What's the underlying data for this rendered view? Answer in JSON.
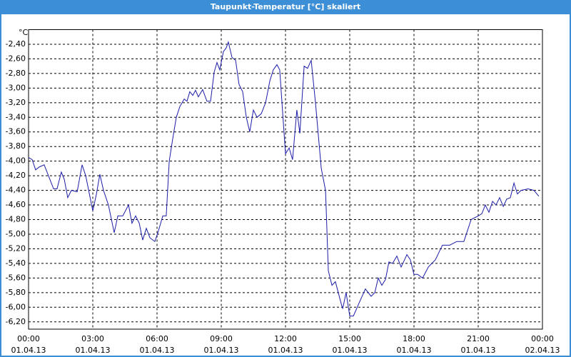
{
  "chart_data": {
    "type": "line",
    "title": "Taupunkt-Temperatur [°C] skaliert",
    "y_unit": "°C",
    "xlim": [
      0,
      24
    ],
    "xticks": [
      {
        "value": 0,
        "label": [
          "00:00",
          "01.04.13"
        ]
      },
      {
        "value": 3,
        "label": [
          "03:00",
          "01.04.13"
        ]
      },
      {
        "value": 6,
        "label": [
          "06:00",
          "01.04.13"
        ]
      },
      {
        "value": 9,
        "label": [
          "09:00",
          "01.04.13"
        ]
      },
      {
        "value": 12,
        "label": [
          "12:00",
          "01.04.13"
        ]
      },
      {
        "value": 15,
        "label": [
          "15:00",
          "01.04.13"
        ]
      },
      {
        "value": 18,
        "label": [
          "18:00",
          "01.04.13"
        ]
      },
      {
        "value": 21,
        "label": [
          "21:00",
          "01.04.13"
        ]
      },
      {
        "value": 24,
        "label": [
          "00:00",
          "02.04.13"
        ]
      }
    ],
    "ylim": [
      -6.3,
      -2.2
    ],
    "yticks": [
      {
        "value": -2.4,
        "label": "-2,40"
      },
      {
        "value": -2.6,
        "label": "-2,60"
      },
      {
        "value": -2.8,
        "label": "-2,80"
      },
      {
        "value": -3.0,
        "label": "-3,00"
      },
      {
        "value": -3.2,
        "label": "-3,20"
      },
      {
        "value": -3.4,
        "label": "-3,40"
      },
      {
        "value": -3.6,
        "label": "-3,60"
      },
      {
        "value": -3.8,
        "label": "-3,80"
      },
      {
        "value": -4.0,
        "label": "-4,00"
      },
      {
        "value": -4.2,
        "label": "-4,20"
      },
      {
        "value": -4.4,
        "label": "-4,40"
      },
      {
        "value": -4.6,
        "label": "-4,60"
      },
      {
        "value": -4.8,
        "label": "-4,80"
      },
      {
        "value": -5.0,
        "label": "-5,00"
      },
      {
        "value": -5.2,
        "label": "-5,20"
      },
      {
        "value": -5.4,
        "label": "-5,40"
      },
      {
        "value": -5.6,
        "label": "-5,60"
      },
      {
        "value": -5.8,
        "label": "-5,80"
      },
      {
        "value": -6.0,
        "label": "-6,00"
      },
      {
        "value": -6.2,
        "label": "-6,20"
      }
    ],
    "grid": true,
    "x": [
      0,
      0.17,
      0.33,
      0.5,
      0.73,
      0.93,
      1.17,
      1.33,
      1.53,
      1.67,
      1.83,
      2,
      2.27,
      2.5,
      2.67,
      3,
      3.17,
      3.33,
      3.5,
      3.73,
      4,
      4.17,
      4.4,
      4.67,
      4.83,
      5,
      5.17,
      5.33,
      5.5,
      5.67,
      5.9,
      6.07,
      6.27,
      6.43,
      6.57,
      6.73,
      6.9,
      7.07,
      7.27,
      7.4,
      7.53,
      7.67,
      7.8,
      7.93,
      8.13,
      8.33,
      8.5,
      8.67,
      8.8,
      8.93,
      9.1,
      9.23,
      9.33,
      9.5,
      9.67,
      9.83,
      10,
      10.17,
      10.33,
      10.5,
      10.67,
      10.87,
      11.07,
      11.27,
      11.43,
      11.6,
      11.73,
      11.87,
      12,
      12.17,
      12.33,
      12.53,
      12.67,
      12.87,
      13.03,
      13.2,
      13.4,
      13.67,
      13.87,
      14,
      14.17,
      14.33,
      14.6,
      14.67,
      14.83,
      15,
      15.17,
      15.5,
      15.73,
      16,
      16.17,
      16.33,
      16.5,
      16.67,
      16.83,
      17,
      17.2,
      17.4,
      17.67,
      17.83,
      18,
      18.17,
      18.4,
      18.67,
      19,
      19.33,
      19.67,
      20,
      20.33,
      20.67,
      21,
      21.17,
      21.33,
      21.5,
      21.67,
      21.83,
      22,
      22.17,
      22.33,
      22.5,
      22.67,
      22.83,
      23,
      23.33,
      23.6,
      23.83
    ],
    "series": [
      {
        "color": "#1c1ca8",
        "values": [
          -3.95,
          -3.98,
          -4.12,
          -4.08,
          -4.05,
          -4.2,
          -4.38,
          -4.38,
          -4.15,
          -4.25,
          -4.5,
          -4.4,
          -4.42,
          -4.05,
          -4.2,
          -4.68,
          -4.45,
          -4.18,
          -4.4,
          -4.6,
          -4.98,
          -4.75,
          -4.75,
          -4.6,
          -4.85,
          -4.75,
          -4.85,
          -5.08,
          -4.92,
          -5.05,
          -5.1,
          -4.95,
          -4.75,
          -4.75,
          -4.0,
          -3.7,
          -3.4,
          -3.25,
          -3.15,
          -3.18,
          -3.05,
          -3.1,
          -3.03,
          -3.12,
          -3.02,
          -3.18,
          -3.18,
          -2.78,
          -2.65,
          -2.75,
          -2.5,
          -2.45,
          -2.37,
          -2.58,
          -2.62,
          -2.95,
          -3.05,
          -3.4,
          -3.6,
          -3.3,
          -3.4,
          -3.35,
          -3.2,
          -2.9,
          -2.75,
          -2.68,
          -2.75,
          -3.35,
          -3.9,
          -3.82,
          -3.98,
          -3.3,
          -3.62,
          -2.7,
          -2.73,
          -2.62,
          -3.2,
          -4.1,
          -4.4,
          -5.5,
          -5.7,
          -5.65,
          -5.95,
          -6.02,
          -5.8,
          -6.12,
          -6.12,
          -5.9,
          -5.75,
          -5.85,
          -5.8,
          -5.6,
          -5.7,
          -5.62,
          -5.38,
          -5.4,
          -5.3,
          -5.45,
          -5.28,
          -5.35,
          -5.55,
          -5.55,
          -5.6,
          -5.45,
          -5.35,
          -5.15,
          -5.15,
          -5.1,
          -5.1,
          -4.8,
          -4.75,
          -4.72,
          -4.6,
          -4.7,
          -4.55,
          -4.6,
          -4.5,
          -4.62,
          -4.52,
          -4.5,
          -4.3,
          -4.45,
          -4.4,
          -4.38,
          -4.4,
          -4.48
        ]
      }
    ]
  }
}
